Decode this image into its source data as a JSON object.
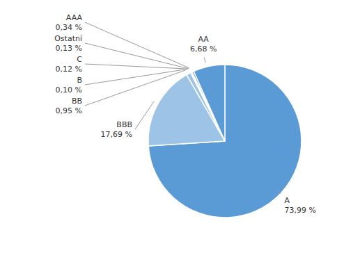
{
  "chart_data": {
    "type": "pie",
    "categories": [
      "A",
      "BBB",
      "BB",
      "B",
      "C",
      "Ostatní",
      "AAA",
      "AA"
    ],
    "values": [
      73.99,
      17.69,
      0.95,
      0.1,
      0.12,
      0.13,
      0.34,
      6.68
    ],
    "colors": [
      "#5B9BD5",
      "#9DC3E6",
      "#9DC3E6",
      "#9DC3E6",
      "#BDD0E9",
      "#C8C8C8",
      "#2E75B6",
      "#5B9BD5"
    ],
    "value_labels": [
      "73,99 %",
      "17,69 %",
      "0,95 %",
      "0,10 %",
      "0,12 %",
      "0,13 %",
      "0,34 %",
      "6,68 %"
    ],
    "data_labels": true
  }
}
